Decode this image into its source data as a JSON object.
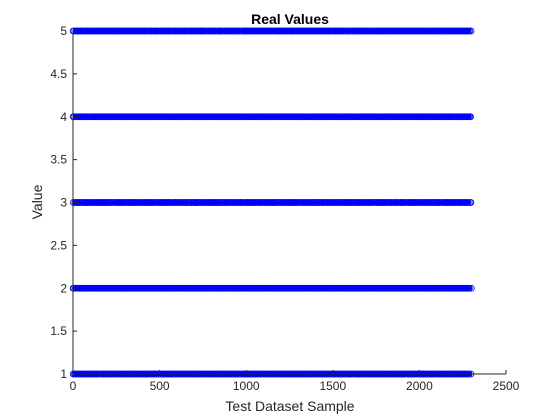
{
  "chart_data": {
    "type": "scatter",
    "title": "Real Values",
    "xlabel": "Test Dataset Sample",
    "ylabel": "Value",
    "xlim": [
      0,
      2500
    ],
    "ylim": [
      1,
      5
    ],
    "xticks": [
      "0",
      "500",
      "1000",
      "1500",
      "2000",
      "2500"
    ],
    "yticks": [
      "1",
      "1.5",
      "2",
      "2.5",
      "3",
      "3.5",
      "4",
      "4.5",
      "5"
    ],
    "grid": false,
    "marker": "circle",
    "marker_color": "#0000ff",
    "series": [
      {
        "y": 1,
        "x_range": [
          1,
          2300
        ]
      },
      {
        "y": 2,
        "x_range": [
          1,
          2300
        ]
      },
      {
        "y": 3,
        "x_range": [
          1,
          2300
        ]
      },
      {
        "y": 4,
        "x_range": [
          1,
          2300
        ]
      },
      {
        "y": 5,
        "x_range": [
          1,
          2300
        ]
      }
    ]
  }
}
